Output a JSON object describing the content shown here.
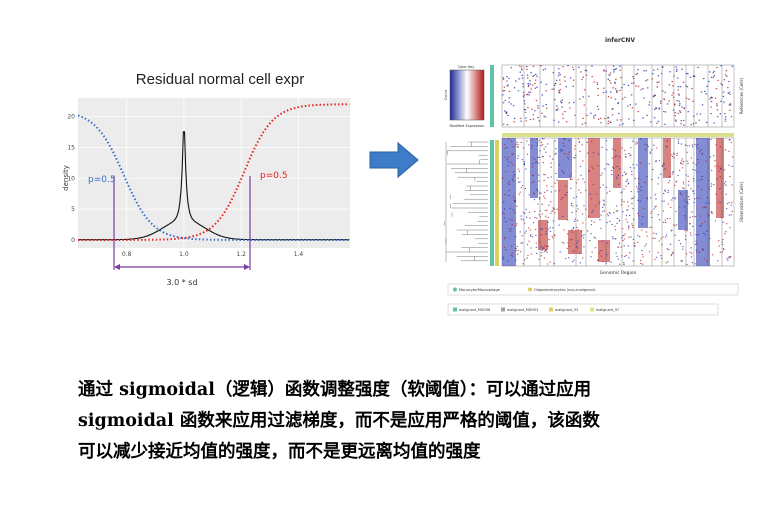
{
  "left_figure": {
    "title": "Residual normal cell expr",
    "ylabel": "density",
    "y_ticks": [
      "0",
      "5",
      "10",
      "15",
      "20"
    ],
    "x_ticks": [
      "0.8",
      "1.0",
      "1.2",
      "1.4"
    ],
    "left_label": "p=0.5",
    "right_label": "p=0.5",
    "span_label": "3.0 * sd",
    "colors": {
      "blue": "#3b6fc4",
      "red": "#e52424",
      "purple": "#7a3fa0",
      "black": "#111111"
    }
  },
  "right_figure": {
    "title": "inferCNV",
    "x_label": "Genomic Region",
    "y_label_top": "References (Cells)",
    "y_label_bottom": "Observations (Cells)",
    "key_title": "Color Key",
    "key_bottom": "Modified Expression",
    "key_side": "Count",
    "legend_row1": [
      "Monocyte/Macrophage",
      "Oligodendrocytes (non-malignant)"
    ],
    "legend_row2": [
      "malignant_MGH36",
      "malignant_MGH53",
      "malignant_93",
      "malignant_97"
    ],
    "legend_colors1": [
      "#62c2a8",
      "#d8d060"
    ],
    "legend_colors2": [
      "#62c2a8",
      "#a3a3a3",
      "#d8d060",
      "#e8e080"
    ]
  },
  "arrow": {
    "color": "#3d7cc9",
    "icon": "right-arrow-icon"
  },
  "caption": {
    "line1": "通过 sigmoidal（逻辑）函数调整强度（软阈值）：可以通过应用",
    "line2": "sigmoidal 函数来应用过滤梯度，而不是应用严格的阈值，该函数",
    "line3": "可以减少接近均值的强度，而不是更远离均值的强度"
  }
}
